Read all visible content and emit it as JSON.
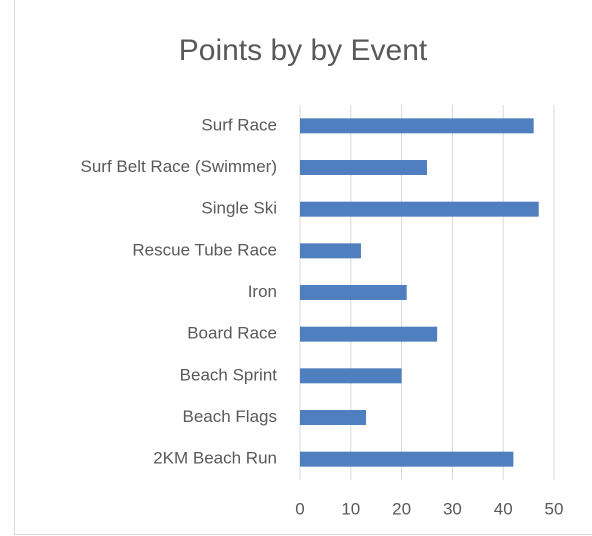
{
  "chart_data": {
    "type": "barh",
    "title": "Points by by Event",
    "categories": [
      "Surf Race",
      "Surf Belt Race (Swimmer)",
      "Single Ski",
      "Rescue Tube Race",
      "Iron",
      "Board Race",
      "Beach Sprint",
      "Beach Flags",
      "2KM Beach Run"
    ],
    "values": [
      46,
      25,
      47,
      12,
      21,
      27,
      20,
      13,
      42
    ],
    "color": "#4f7fbf",
    "xlim": [
      0,
      50
    ],
    "xticks": [
      0,
      10,
      20,
      30,
      40,
      50
    ],
    "grid": true
  }
}
